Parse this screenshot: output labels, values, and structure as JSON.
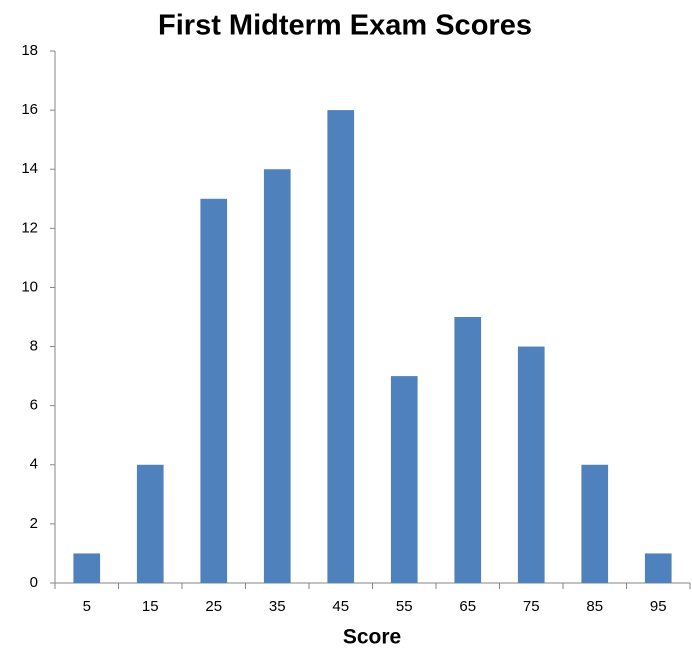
{
  "chart_data": {
    "type": "bar",
    "title": "First Midterm Exam Scores",
    "x_label": "Score",
    "categories": [
      "5",
      "15",
      "25",
      "35",
      "45",
      "55",
      "65",
      "75",
      "85",
      "95"
    ],
    "values": [
      1,
      4,
      13,
      14,
      16,
      7,
      9,
      8,
      4,
      1
    ],
    "color": "#4f81bd",
    "ylim": [
      0,
      18
    ],
    "yticks": [
      0,
      2,
      4,
      6,
      8,
      10,
      12,
      14,
      16,
      18
    ],
    "grid": false
  }
}
